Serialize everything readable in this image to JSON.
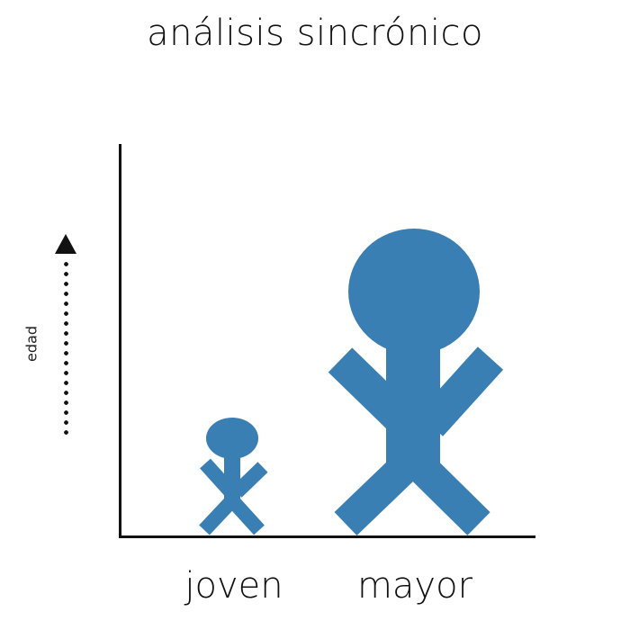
{
  "title": "análisis sincrónico",
  "axis": {
    "y_label": "edad"
  },
  "figures": [
    {
      "label": "joven",
      "color": "#3a7fb4"
    },
    {
      "label": "mayor",
      "color": "#3a7fb4"
    }
  ],
  "colors": {
    "figure_fill": "#3a7fb4",
    "axis": "#111111",
    "text": "#111111"
  },
  "icons": {
    "arrow": "dotted-up-arrow-icon",
    "person": "stick-figure-icon"
  }
}
